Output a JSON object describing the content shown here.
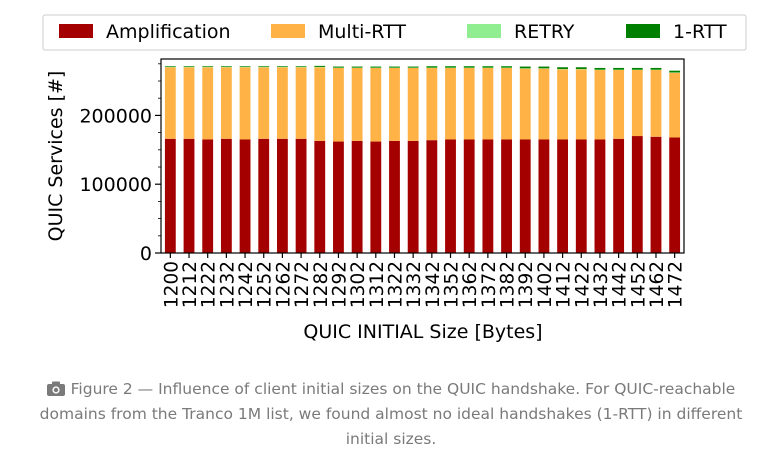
{
  "chart_data": {
    "type": "bar",
    "stacked": true,
    "xlabel": "QUIC INITIAL Size [Bytes]",
    "ylabel": "QUIC Services [#]",
    "ylim": [
      0,
      282000
    ],
    "yticks": [
      0,
      100000,
      200000
    ],
    "grid": false,
    "legend_position": "top",
    "categories": [
      "1200",
      "1212",
      "1222",
      "1232",
      "1242",
      "1252",
      "1262",
      "1272",
      "1282",
      "1292",
      "1302",
      "1312",
      "1322",
      "1332",
      "1342",
      "1352",
      "1362",
      "1372",
      "1382",
      "1392",
      "1402",
      "1412",
      "1422",
      "1432",
      "1442",
      "1452",
      "1462",
      "1472"
    ],
    "series": [
      {
        "name": "Amplification",
        "color": "#a50000",
        "values": [
          166000,
          166000,
          165000,
          166000,
          165000,
          166000,
          166000,
          166000,
          163000,
          162000,
          163000,
          162000,
          163000,
          163000,
          164000,
          165000,
          165000,
          165000,
          165000,
          165000,
          165000,
          165000,
          165000,
          165000,
          166000,
          170000,
          169000,
          168000
        ]
      },
      {
        "name": "Multi-RTT",
        "color": "#ffb347",
        "values": [
          104000,
          104000,
          105000,
          104000,
          105000,
          104000,
          104000,
          104000,
          107000,
          107000,
          106000,
          107000,
          106000,
          106000,
          105000,
          104000,
          104000,
          104000,
          104000,
          103000,
          103000,
          102000,
          102000,
          101000,
          100000,
          96000,
          97000,
          94000
        ]
      },
      {
        "name": "RETRY",
        "color": "#90ee90",
        "values": [
          500,
          500,
          500,
          500,
          500,
          500,
          500,
          500,
          500,
          500,
          500,
          500,
          500,
          500,
          500,
          500,
          500,
          500,
          500,
          500,
          500,
          500,
          500,
          500,
          500,
          500,
          500,
          500
        ]
      },
      {
        "name": "1-RTT",
        "color": "#008000",
        "values": [
          1000,
          1000,
          1000,
          1000,
          1000,
          1000,
          1000,
          1000,
          1500,
          1500,
          1500,
          1500,
          1500,
          1500,
          2000,
          2000,
          2000,
          2000,
          2000,
          2500,
          2500,
          2500,
          2500,
          2500,
          2500,
          2500,
          2500,
          2500
        ]
      }
    ]
  },
  "caption": {
    "icon": "camera-icon",
    "text": "Figure 2 — Influence of client initial sizes on the QUIC handshake. For QUIC-reachable domains from the Tranco 1M list, we found almost no ideal handshakes (1-RTT) in different initial sizes."
  }
}
